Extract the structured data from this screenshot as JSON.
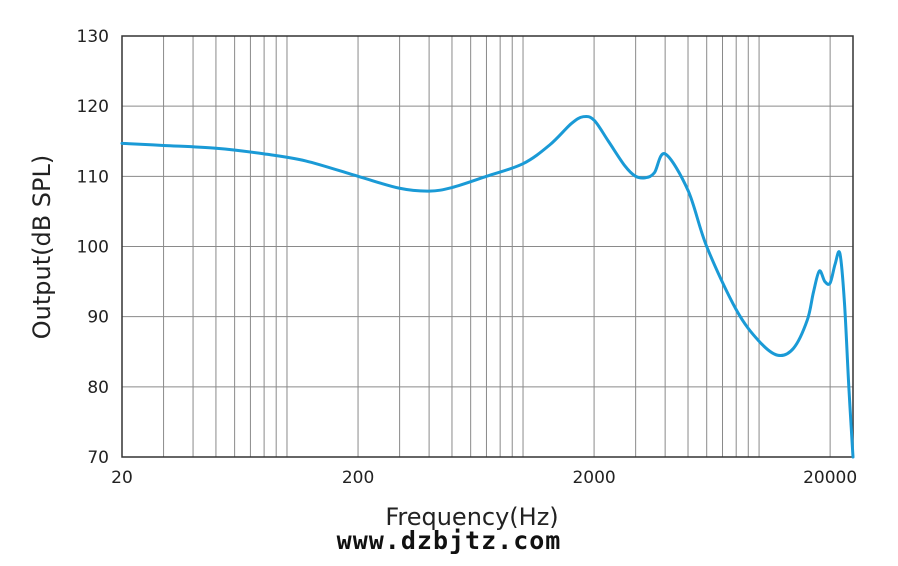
{
  "chart_data": {
    "type": "line",
    "title": "",
    "xlabel": "Frequency(Hz)",
    "ylabel": "Output(dB SPL)",
    "x_scale": "log",
    "xlim": [
      20,
      25000
    ],
    "ylim": [
      70,
      130
    ],
    "x_tick_labels": [
      "20",
      "200",
      "2000",
      "20000"
    ],
    "x_tick_values": [
      20,
      200,
      2000,
      20000
    ],
    "y_ticks": [
      70,
      80,
      90,
      100,
      110,
      120,
      130
    ],
    "grid": true,
    "line_color": "#1a9ad6",
    "series": [
      {
        "name": "",
        "x": [
          20,
          30,
          50,
          80,
          120,
          200,
          300,
          400,
          500,
          700,
          1000,
          1300,
          1600,
          1800,
          2000,
          2300,
          2700,
          3000,
          3300,
          3600,
          4000,
          5000,
          6000,
          8000,
          10000,
          12000,
          14000,
          16000,
          17000,
          18000,
          19000,
          20000,
          21000,
          22000,
          23000,
          24000,
          25000
        ],
        "y": [
          114.7,
          114.4,
          114.0,
          113.2,
          112.2,
          110.0,
          108.3,
          107.9,
          108.4,
          110.0,
          111.8,
          114.5,
          117.5,
          118.5,
          118.0,
          115.0,
          111.5,
          110.0,
          109.8,
          110.5,
          113.2,
          108.0,
          100.0,
          91.0,
          86.5,
          84.5,
          85.5,
          89.5,
          93.5,
          96.5,
          95.0,
          94.8,
          97.5,
          99.0,
          92.0,
          80.0,
          70.0
        ]
      }
    ]
  },
  "watermark": "www.dzbjtz.com"
}
